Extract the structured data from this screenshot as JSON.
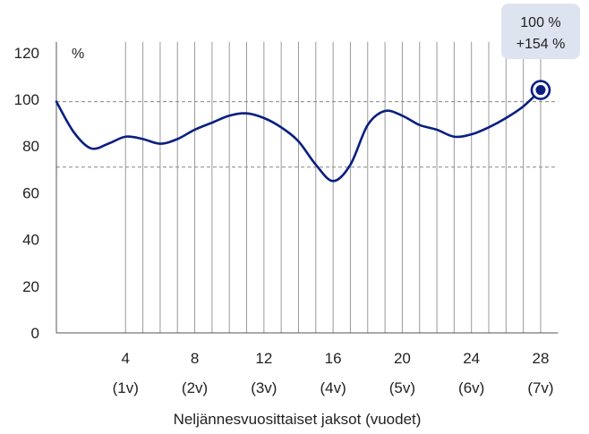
{
  "chart_data": {
    "type": "line",
    "title": "",
    "xlabel": "Neljännesvuosittaiset jaksot (vuodet)",
    "ylabel": "%",
    "ylim": [
      0,
      120
    ],
    "xlim": [
      0,
      29
    ],
    "y_ticks": [
      0,
      20,
      40,
      60,
      80,
      100,
      120
    ],
    "x_ticks": [
      {
        "value": 4,
        "label": "4",
        "sublabel": "(1v)"
      },
      {
        "value": 8,
        "label": "8",
        "sublabel": "(2v)"
      },
      {
        "value": 12,
        "label": "12",
        "sublabel": "(3v)"
      },
      {
        "value": 16,
        "label": "16",
        "sublabel": "(4v)"
      },
      {
        "value": 20,
        "label": "20",
        "sublabel": "(5v)"
      },
      {
        "value": 24,
        "label": "24",
        "sublabel": "(6v)"
      },
      {
        "value": 28,
        "label": "28",
        "sublabel": "(7v)"
      }
    ],
    "vertical_gridlines": [
      4,
      5,
      6,
      7,
      8,
      9,
      10,
      11,
      12,
      13,
      14,
      15,
      16,
      17,
      18,
      19,
      20,
      21,
      22,
      23,
      24,
      25,
      26,
      27,
      28
    ],
    "reference_lines": [
      99,
      71
    ],
    "series": [
      {
        "color": "#0a1f80",
        "points": [
          {
            "x": 0,
            "y": 99
          },
          {
            "x": 1,
            "y": 86
          },
          {
            "x": 2,
            "y": 79
          },
          {
            "x": 3,
            "y": 81
          },
          {
            "x": 4,
            "y": 84
          },
          {
            "x": 5,
            "y": 83
          },
          {
            "x": 6,
            "y": 81
          },
          {
            "x": 7,
            "y": 83
          },
          {
            "x": 8,
            "y": 87
          },
          {
            "x": 9,
            "y": 90
          },
          {
            "x": 10,
            "y": 93
          },
          {
            "x": 11,
            "y": 94
          },
          {
            "x": 12,
            "y": 92
          },
          {
            "x": 13,
            "y": 88
          },
          {
            "x": 14,
            "y": 82
          },
          {
            "x": 15,
            "y": 72
          },
          {
            "x": 16,
            "y": 65
          },
          {
            "x": 17,
            "y": 72
          },
          {
            "x": 18,
            "y": 89
          },
          {
            "x": 19,
            "y": 95
          },
          {
            "x": 20,
            "y": 93
          },
          {
            "x": 21,
            "y": 89
          },
          {
            "x": 22,
            "y": 87
          },
          {
            "x": 23,
            "y": 84
          },
          {
            "x": 24,
            "y": 85
          },
          {
            "x": 25,
            "y": 88
          },
          {
            "x": 26,
            "y": 92
          },
          {
            "x": 27,
            "y": 97
          },
          {
            "x": 28,
            "y": 104
          }
        ]
      }
    ],
    "end_marker": {
      "x": 28,
      "y": 104
    },
    "callout": {
      "line1": "100 %",
      "line2": "+154 %",
      "bg_color": "#dde3ef"
    },
    "grid": {
      "vertical": true,
      "horizontal": false
    },
    "colors": {
      "line": "#0a1f80",
      "gridline": "#9a9a9a",
      "reference_line": "#888888",
      "axis": "#555555",
      "text": "#222222"
    }
  }
}
